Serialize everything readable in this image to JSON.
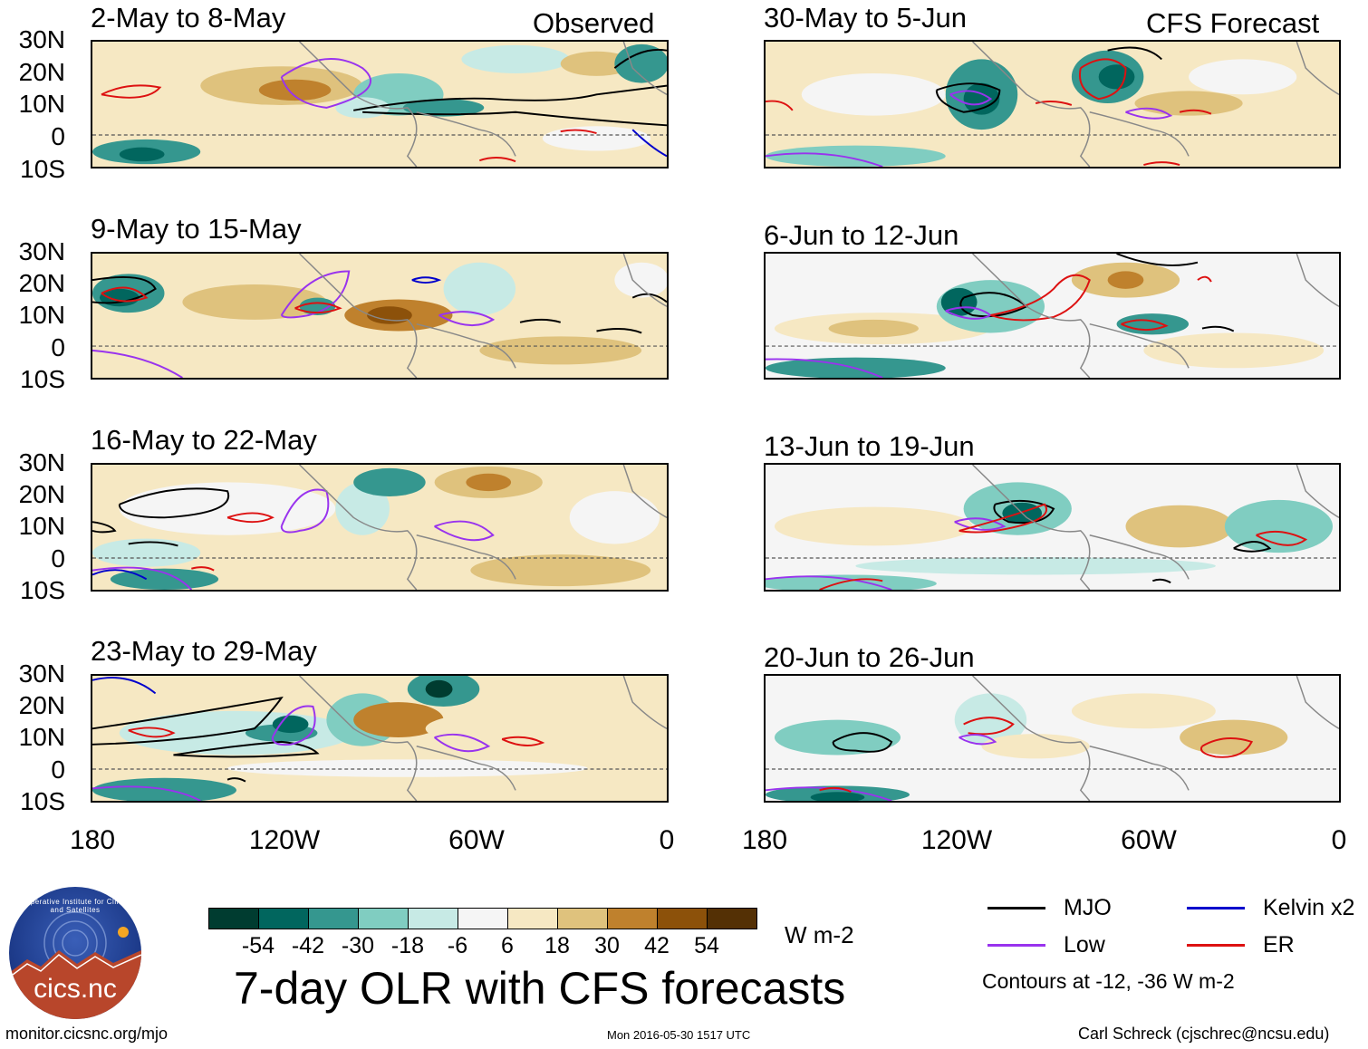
{
  "panels": [
    {
      "title": "2-May to 8-May",
      "corner": "Observed",
      "show_lat": true
    },
    {
      "title": "30-May to 5-Jun",
      "corner": "CFS Forecast",
      "show_lat": false
    },
    {
      "title": "9-May to 15-May",
      "corner": "",
      "show_lat": true
    },
    {
      "title": "6-Jun to 12-Jun",
      "corner": "",
      "show_lat": false
    },
    {
      "title": "16-May to 22-May",
      "corner": "",
      "show_lat": true
    },
    {
      "title": "13-Jun to 19-Jun",
      "corner": "",
      "show_lat": false
    },
    {
      "title": "23-May to 29-May",
      "corner": "",
      "show_lat": true
    },
    {
      "title": "20-Jun to 26-Jun",
      "corner": "",
      "show_lat": false
    }
  ],
  "lat_labels": [
    "30N",
    "20N",
    "10N",
    "0",
    "10S"
  ],
  "lon_labels": [
    "180",
    "120W",
    "60W",
    "0"
  ],
  "colorbar": {
    "colors": [
      "#003c30",
      "#01665e",
      "#35978f",
      "#80cdc1",
      "#c7eae5",
      "#f5f5f5",
      "#f6e8c3",
      "#dfc27d",
      "#bf812d",
      "#8c510a",
      "#543005"
    ],
    "labels": [
      "-54",
      "-42",
      "-30",
      "-18",
      "-6",
      "6",
      "18",
      "30",
      "42",
      "54"
    ],
    "units": "W m-2"
  },
  "main_title": "7-day OLR with CFS forecasts",
  "legend": {
    "items": [
      {
        "label": "MJO",
        "color": "#000000"
      },
      {
        "label": "Kelvin x2",
        "color": "#0000cc"
      },
      {
        "label": "Low",
        "color": "#9933ee"
      },
      {
        "label": "ER",
        "color": "#dd1111"
      }
    ],
    "note": "Contours at -12, -36 W m-2"
  },
  "logo_text": "cics.nc",
  "logo_ring": "Cooperative Institute for Climate and Satellites",
  "footer": {
    "left": "monitor.cicsnc.org/mjo",
    "center": "Mon 2016-05-30 1517 UTC",
    "right": "Carl Schreck (cjschrec@ncsu.edu)"
  }
}
